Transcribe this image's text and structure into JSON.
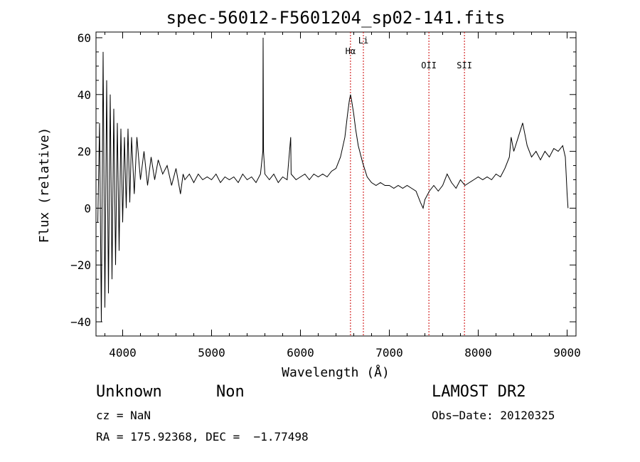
{
  "chart_data": {
    "type": "line",
    "title": "spec-56012-F5601204_sp02-141.fits",
    "xlabel": "Wavelength (Å)",
    "ylabel": "Flux (relative)",
    "xlim": [
      3700,
      9100
    ],
    "ylim": [
      -45,
      62
    ],
    "x_ticks": [
      4000,
      5000,
      6000,
      7000,
      8000,
      9000
    ],
    "y_ticks": [
      -40,
      -20,
      0,
      20,
      40,
      60
    ],
    "x_tick_labels": [
      "4000",
      "5000",
      "6000",
      "7000",
      "8000",
      "9000"
    ],
    "y_tick_labels": [
      "−40",
      "−20",
      "0",
      "20",
      "40",
      "60"
    ],
    "grid": false,
    "series": [
      {
        "color": "#000000",
        "points": [
          [
            3720,
            -5
          ],
          [
            3740,
            30
          ],
          [
            3760,
            -40
          ],
          [
            3780,
            55
          ],
          [
            3800,
            -35
          ],
          [
            3820,
            45
          ],
          [
            3840,
            -30
          ],
          [
            3860,
            40
          ],
          [
            3880,
            -25
          ],
          [
            3900,
            35
          ],
          [
            3920,
            -20
          ],
          [
            3940,
            30
          ],
          [
            3960,
            -15
          ],
          [
            3980,
            28
          ],
          [
            4000,
            -5
          ],
          [
            4020,
            25
          ],
          [
            4040,
            0
          ],
          [
            4060,
            28
          ],
          [
            4080,
            2
          ],
          [
            4100,
            25
          ],
          [
            4130,
            5
          ],
          [
            4160,
            25
          ],
          [
            4200,
            10
          ],
          [
            4240,
            20
          ],
          [
            4280,
            8
          ],
          [
            4320,
            18
          ],
          [
            4360,
            10
          ],
          [
            4400,
            17
          ],
          [
            4450,
            12
          ],
          [
            4500,
            15
          ],
          [
            4550,
            8
          ],
          [
            4600,
            14
          ],
          [
            4650,
            5
          ],
          [
            4680,
            12
          ],
          [
            4700,
            10
          ],
          [
            4750,
            12
          ],
          [
            4800,
            9
          ],
          [
            4850,
            12
          ],
          [
            4900,
            10
          ],
          [
            4950,
            11
          ],
          [
            5000,
            10
          ],
          [
            5050,
            12
          ],
          [
            5100,
            9
          ],
          [
            5150,
            11
          ],
          [
            5200,
            10
          ],
          [
            5250,
            11
          ],
          [
            5300,
            9
          ],
          [
            5350,
            12
          ],
          [
            5400,
            10
          ],
          [
            5450,
            11
          ],
          [
            5500,
            9
          ],
          [
            5550,
            12
          ],
          [
            5577,
            20
          ],
          [
            5580,
            60
          ],
          [
            5585,
            20
          ],
          [
            5600,
            12
          ],
          [
            5650,
            10
          ],
          [
            5700,
            12
          ],
          [
            5750,
            9
          ],
          [
            5800,
            11
          ],
          [
            5850,
            10
          ],
          [
            5890,
            25
          ],
          [
            5895,
            12
          ],
          [
            5950,
            10
          ],
          [
            6000,
            11
          ],
          [
            6050,
            12
          ],
          [
            6100,
            10
          ],
          [
            6150,
            12
          ],
          [
            6200,
            11
          ],
          [
            6250,
            12
          ],
          [
            6300,
            11
          ],
          [
            6350,
            13
          ],
          [
            6400,
            14
          ],
          [
            6450,
            18
          ],
          [
            6500,
            25
          ],
          [
            6530,
            33
          ],
          [
            6550,
            38
          ],
          [
            6563,
            40
          ],
          [
            6575,
            38
          ],
          [
            6600,
            33
          ],
          [
            6620,
            28
          ],
          [
            6650,
            22
          ],
          [
            6700,
            16
          ],
          [
            6750,
            11
          ],
          [
            6800,
            9
          ],
          [
            6850,
            8
          ],
          [
            6900,
            9
          ],
          [
            6950,
            8
          ],
          [
            7000,
            8
          ],
          [
            7050,
            7
          ],
          [
            7100,
            8
          ],
          [
            7150,
            7
          ],
          [
            7200,
            8
          ],
          [
            7250,
            7
          ],
          [
            7300,
            6
          ],
          [
            7350,
            2
          ],
          [
            7380,
            0
          ],
          [
            7400,
            3
          ],
          [
            7450,
            6
          ],
          [
            7500,
            8
          ],
          [
            7550,
            6
          ],
          [
            7600,
            8
          ],
          [
            7650,
            12
          ],
          [
            7700,
            9
          ],
          [
            7750,
            7
          ],
          [
            7800,
            10
          ],
          [
            7850,
            8
          ],
          [
            7900,
            9
          ],
          [
            7950,
            10
          ],
          [
            8000,
            11
          ],
          [
            8050,
            10
          ],
          [
            8100,
            11
          ],
          [
            8150,
            10
          ],
          [
            8200,
            12
          ],
          [
            8250,
            11
          ],
          [
            8300,
            14
          ],
          [
            8350,
            18
          ],
          [
            8370,
            25
          ],
          [
            8400,
            20
          ],
          [
            8450,
            25
          ],
          [
            8500,
            30
          ],
          [
            8550,
            22
          ],
          [
            8600,
            18
          ],
          [
            8650,
            20
          ],
          [
            8700,
            17
          ],
          [
            8750,
            20
          ],
          [
            8800,
            18
          ],
          [
            8850,
            21
          ],
          [
            8900,
            20
          ],
          [
            8950,
            22
          ],
          [
            8980,
            18
          ],
          [
            9000,
            5
          ],
          [
            9010,
            0
          ]
        ]
      }
    ],
    "lines": [
      {
        "label": "Hα",
        "x": 6563
      },
      {
        "label": "Li",
        "x": 6708
      },
      {
        "label": "OII",
        "x": 7445
      },
      {
        "label": "SII",
        "x": 7845
      }
    ],
    "line_color": "#cc0000"
  },
  "info": {
    "class": "Unknown",
    "subclass": "Non",
    "cz": "cz = NaN",
    "radec": "RA = 175.92368, DEC =  −1.77498",
    "survey": "LAMOST DR2",
    "obs_date": "Obs−Date: 20120325"
  }
}
